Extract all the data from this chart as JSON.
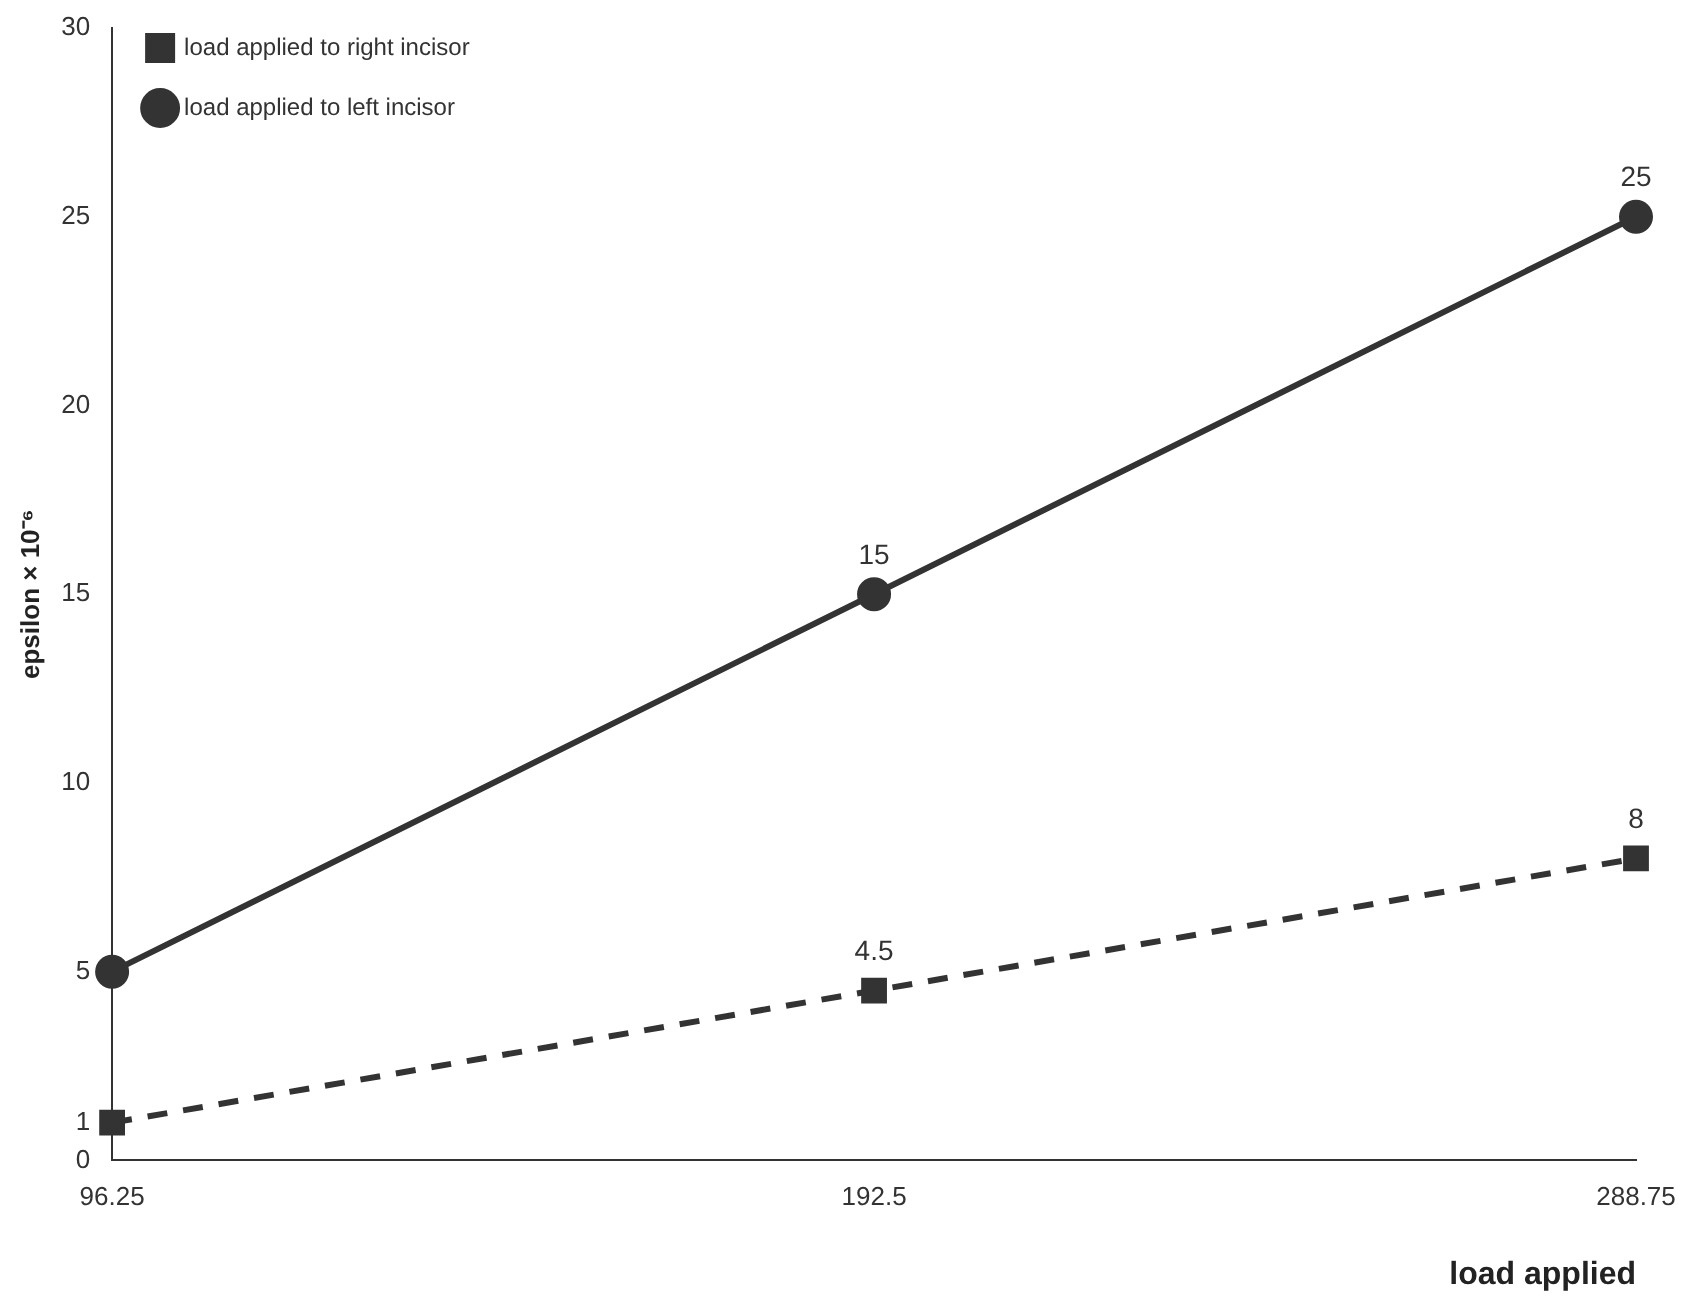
{
  "chart_data": {
    "type": "line",
    "xlabel": "load applied",
    "ylabel": "epsilon × 10⁻⁶",
    "categories": [
      "96.25",
      "192.5",
      "288.75"
    ],
    "series": [
      {
        "name": "load applied to right incisor",
        "color": "#333333",
        "values": [
          1,
          4.5,
          8
        ],
        "marker": "square",
        "line_style": "dashed",
        "value_labels": [
          null,
          "4.5",
          "8"
        ]
      },
      {
        "name": "load applied to left incisor",
        "color": "#333333",
        "values": [
          5,
          15,
          25
        ],
        "marker": "circle",
        "line_style": "solid",
        "value_labels": [
          null,
          "15",
          "25"
        ]
      }
    ],
    "ylim": [
      0,
      30
    ],
    "yticks": [
      0,
      1,
      5,
      10,
      15,
      20,
      25,
      30
    ],
    "grid": false,
    "legend": "top left"
  }
}
